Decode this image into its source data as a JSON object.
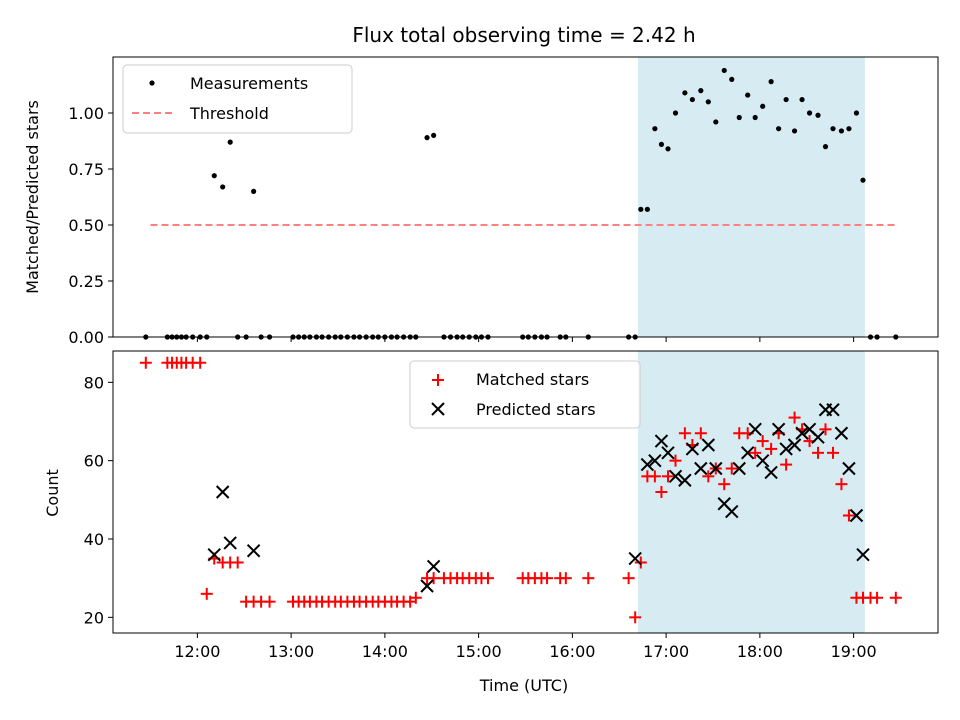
{
  "chart_data": {
    "title": "Flux total observing time = 2.42 h",
    "xlabel": "Time (UTC)",
    "xlim": [
      11.1,
      19.9
    ],
    "x_ticks": [
      12,
      13,
      14,
      15,
      16,
      17,
      18,
      19
    ],
    "x_tick_labels": [
      "12:00",
      "13:00",
      "14:00",
      "15:00",
      "16:00",
      "17:00",
      "18:00",
      "19:00"
    ],
    "shaded_interval": {
      "x": [
        16.7,
        19.12
      ],
      "color": "#add8e6"
    },
    "panels": [
      {
        "type": "scatter",
        "ylabel": "Matched/Predicted stars",
        "ylim": [
          0,
          1.25
        ],
        "y_ticks": [
          0.0,
          0.25,
          0.5,
          0.75,
          1.0
        ],
        "y_tick_labels": [
          "0.00",
          "0.25",
          "0.50",
          "0.75",
          "1.00"
        ],
        "legend": {
          "placement": "top-left",
          "entries": [
            "Measurements",
            "Threshold"
          ]
        },
        "series": [
          {
            "name": "Measurements",
            "marker": "dot",
            "color": "#000000",
            "x": [
              11.45,
              11.68,
              11.73,
              11.78,
              11.83,
              11.88,
              11.95,
              12.03,
              12.1,
              12.18,
              12.27,
              12.35,
              12.43,
              12.52,
              12.6,
              12.68,
              12.77,
              13.02,
              13.08,
              13.14,
              13.2,
              13.27,
              13.33,
              13.4,
              13.47,
              13.53,
              13.6,
              13.67,
              13.73,
              13.8,
              13.87,
              13.93,
              14.0,
              14.07,
              14.13,
              14.2,
              14.27,
              14.33,
              14.45,
              14.52,
              14.63,
              14.7,
              14.77,
              14.83,
              14.9,
              14.97,
              15.03,
              15.1,
              15.47,
              15.53,
              15.6,
              15.67,
              15.73,
              15.87,
              15.93,
              16.17,
              16.6,
              16.67,
              16.73,
              16.8,
              16.88,
              16.95,
              17.02,
              17.1,
              17.2,
              17.28,
              17.37,
              17.45,
              17.53,
              17.62,
              17.7,
              17.78,
              17.87,
              17.95,
              18.03,
              18.12,
              18.2,
              18.28,
              18.37,
              18.45,
              18.53,
              18.62,
              18.7,
              18.78,
              18.87,
              18.95,
              19.03,
              19.1,
              19.18,
              19.25,
              19.45
            ],
            "y": [
              0,
              0,
              0,
              0,
              0,
              0,
              0,
              0,
              0,
              0.72,
              0.67,
              0.87,
              0,
              0,
              0.65,
              0,
              0,
              0,
              0,
              0,
              0,
              0,
              0,
              0,
              0,
              0,
              0,
              0,
              0,
              0,
              0,
              0,
              0,
              0,
              0,
              0,
              0,
              0,
              0.89,
              0.9,
              0,
              0,
              0,
              0,
              0,
              0,
              0,
              0,
              0,
              0,
              0,
              0,
              0,
              0,
              0,
              0,
              0,
              0,
              0.57,
              0.57,
              0.93,
              0.86,
              0.84,
              1.0,
              1.09,
              1.06,
              1.1,
              1.05,
              0.96,
              1.19,
              1.15,
              0.98,
              1.08,
              0.98,
              1.03,
              1.14,
              0.93,
              1.06,
              0.92,
              1.06,
              1.0,
              0.99,
              0.85,
              0.93,
              0.92,
              0.93,
              1.0,
              0.7,
              0,
              0,
              0
            ]
          },
          {
            "name": "Threshold",
            "marker": "dashed-line",
            "color": "#ff8080",
            "x": [
              11.5,
              19.45
            ],
            "y": [
              0.5,
              0.5
            ]
          }
        ]
      },
      {
        "type": "scatter",
        "ylabel": "Count",
        "ylim": [
          16,
          88
        ],
        "y_ticks": [
          20,
          40,
          60,
          80
        ],
        "y_tick_labels": [
          "20",
          "40",
          "60",
          "80"
        ],
        "legend": {
          "placement": "top-center",
          "entries": [
            "Matched stars",
            "Predicted stars"
          ]
        },
        "series": [
          {
            "name": "Matched stars",
            "marker": "plus",
            "color": "#ff0000",
            "x": [
              11.45,
              11.68,
              11.73,
              11.78,
              11.83,
              11.88,
              11.95,
              12.03,
              12.1,
              12.18,
              12.27,
              12.35,
              12.43,
              12.52,
              12.6,
              12.68,
              12.77,
              13.02,
              13.08,
              13.14,
              13.2,
              13.27,
              13.33,
              13.4,
              13.47,
              13.53,
              13.6,
              13.67,
              13.73,
              13.8,
              13.87,
              13.93,
              14.0,
              14.07,
              14.13,
              14.2,
              14.27,
              14.33,
              14.45,
              14.52,
              14.63,
              14.7,
              14.77,
              14.83,
              14.9,
              14.97,
              15.03,
              15.1,
              15.47,
              15.53,
              15.6,
              15.67,
              15.73,
              15.87,
              15.93,
              16.17,
              16.6,
              16.67,
              16.73,
              16.8,
              16.88,
              16.95,
              17.02,
              17.1,
              17.2,
              17.28,
              17.37,
              17.45,
              17.53,
              17.62,
              17.7,
              17.78,
              17.87,
              17.95,
              18.03,
              18.12,
              18.2,
              18.28,
              18.37,
              18.45,
              18.53,
              18.62,
              18.7,
              18.78,
              18.87,
              18.95,
              19.03,
              19.1,
              19.18,
              19.25,
              19.45
            ],
            "y": [
              85,
              85,
              85,
              85,
              85,
              85,
              85,
              85,
              26,
              35,
              34,
              34,
              34,
              24,
              24,
              24,
              24,
              24,
              24,
              24,
              24,
              24,
              24,
              24,
              24,
              24,
              24,
              24,
              24,
              24,
              24,
              24,
              24,
              24,
              24,
              24,
              24,
              25,
              30,
              30,
              30,
              30,
              30,
              30,
              30,
              30,
              30,
              30,
              30,
              30,
              30,
              30,
              30,
              30,
              30,
              30,
              30,
              20,
              34,
              56,
              56,
              52,
              56,
              60,
              67,
              64,
              67,
              56,
              58,
              54,
              58,
              67,
              67,
              62,
              65,
              63,
              67,
              59,
              71,
              68,
              65,
              62,
              68,
              62,
              54,
              46,
              25,
              25,
              25,
              25,
              25
            ]
          },
          {
            "name": "Predicted stars",
            "marker": "x",
            "color": "#000000",
            "x": [
              12.18,
              12.27,
              12.35,
              12.6,
              14.45,
              14.52,
              16.67,
              16.8,
              16.88,
              16.95,
              17.02,
              17.1,
              17.2,
              17.28,
              17.37,
              17.45,
              17.53,
              17.62,
              17.7,
              17.78,
              17.87,
              17.95,
              18.03,
              18.12,
              18.2,
              18.28,
              18.37,
              18.45,
              18.53,
              18.62,
              18.7,
              18.78,
              18.87,
              18.95,
              19.03,
              19.1
            ],
            "y": [
              36,
              52,
              39,
              37,
              28,
              33,
              35,
              59,
              60,
              65,
              62,
              56,
              55,
              63,
              58,
              64,
              58,
              49,
              47,
              58,
              62,
              68,
              60,
              57,
              68,
              63,
              64,
              67,
              68,
              66,
              73,
              73,
              67,
              58,
              46,
              36
            ]
          }
        ]
      }
    ]
  }
}
